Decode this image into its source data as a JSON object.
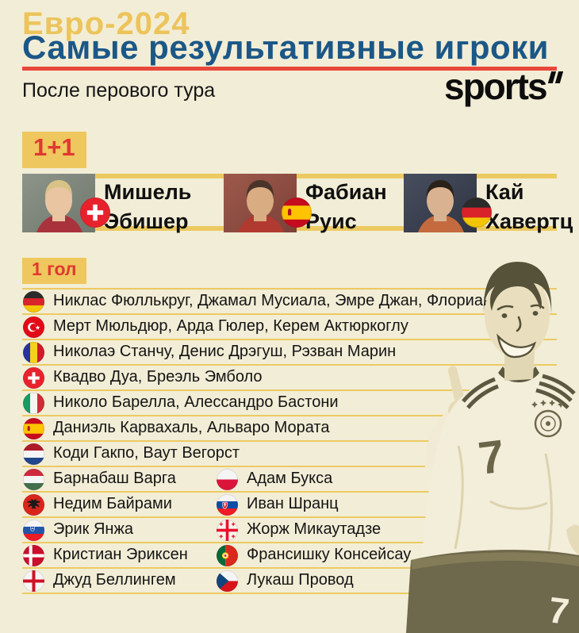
{
  "header": {
    "kicker": "Евро-2024",
    "title": "Самые результативные игроки",
    "subtitle": "После перового тура",
    "brand": "sports",
    "brand_mark": "double-prime"
  },
  "palette": {
    "background": "#f2edd6",
    "band_yellow": "#ecca62",
    "badge_yellow": "#eec75e",
    "title_blue": "#1b5787",
    "accent_red": "#e8483b",
    "badge_text_red": "#e0392f",
    "text_black": "#141414"
  },
  "top_scorers": {
    "badge": "1+1",
    "players": [
      {
        "name_line1": "Мишель",
        "name_line2": "Эбишер",
        "flag": "switzerland"
      },
      {
        "name_line1": "Фабиан",
        "name_line2": "Руис",
        "flag": "spain"
      },
      {
        "name_line1": "Кай",
        "name_line2": "Хавертц",
        "flag": "germany"
      }
    ]
  },
  "one_goal": {
    "badge": "1 гол",
    "rows": [
      {
        "entries": [
          {
            "flag": "germany",
            "names": "Никлас Фюллькруг, Джамал Мусиала, Эмре Джан, Флориан Виртц"
          }
        ]
      },
      {
        "entries": [
          {
            "flag": "turkey",
            "names": "Мерт Мюльдюр, Арда Гюлер, Керем Актюркоглу"
          }
        ]
      },
      {
        "entries": [
          {
            "flag": "romania",
            "names": "Николаэ Станчу, Денис Дрэгуш, Рэзван Марин"
          }
        ]
      },
      {
        "entries": [
          {
            "flag": "switzerland",
            "names": "Квадво Дуа, Бреэль Эмболо"
          }
        ]
      },
      {
        "entries": [
          {
            "flag": "italy",
            "names": "Николо Барелла, Алессандро Бастони"
          }
        ]
      },
      {
        "entries": [
          {
            "flag": "spain",
            "names": "Даниэль Карвахаль, Альваро Мората"
          }
        ]
      },
      {
        "entries": [
          {
            "flag": "netherlands",
            "names": "Коди Гакпо, Ваут Вегорст"
          }
        ]
      },
      {
        "entries": [
          {
            "flag": "hungary",
            "names": "Барнабаш Варга"
          },
          {
            "flag": "poland",
            "names": "Адам Букса"
          }
        ]
      },
      {
        "entries": [
          {
            "flag": "albania",
            "names": "Недим Байрами"
          },
          {
            "flag": "slovakia",
            "names": "Иван Шранц"
          }
        ]
      },
      {
        "entries": [
          {
            "flag": "slovenia",
            "names": "Эрик Янжа"
          },
          {
            "flag": "georgia",
            "names": "Жорж Микаутадзе"
          }
        ]
      },
      {
        "entries": [
          {
            "flag": "denmark",
            "names": "Кристиан Эриксен"
          },
          {
            "flag": "portugal",
            "names": "Франсишку Консейсау"
          }
        ]
      },
      {
        "entries": [
          {
            "flag": "england",
            "names": "Джуд Беллингем"
          },
          {
            "flag": "czechia",
            "names": "Лукаш Провод"
          }
        ]
      }
    ]
  }
}
